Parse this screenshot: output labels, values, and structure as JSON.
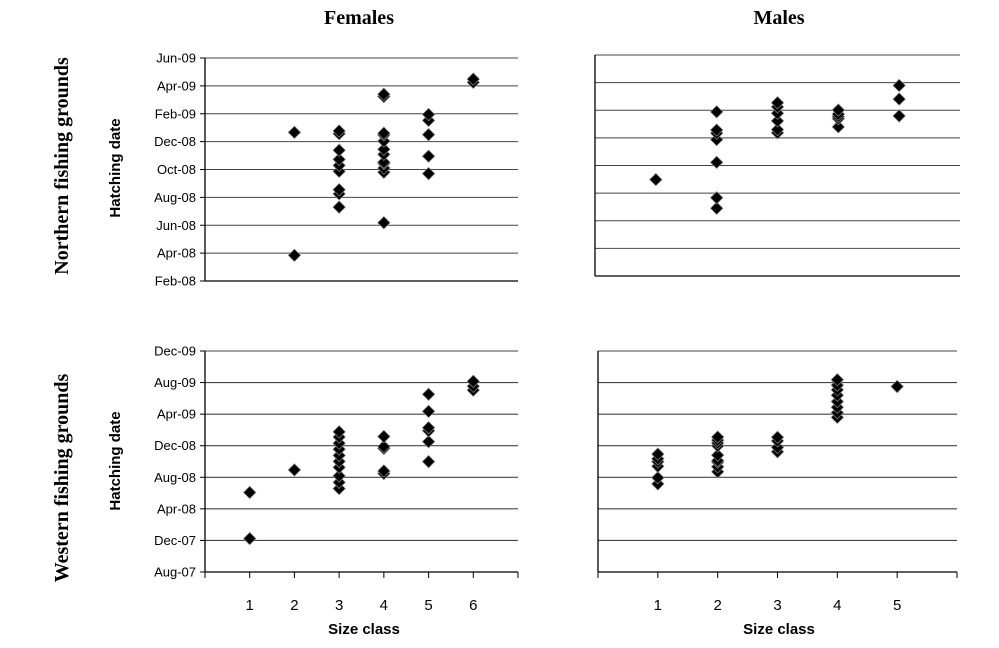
{
  "column_titles": [
    "Females",
    "Males"
  ],
  "row_labels": [
    "Northern fishing grounds",
    "Western fishing grounds"
  ],
  "ylabel": "Hatching date",
  "xlabel": "Size class",
  "colors": {
    "marker": "#000000",
    "marker_edge": "#888888",
    "gridline": "#444444",
    "axis": "#000000"
  },
  "chart_data": [
    {
      "type": "scatter",
      "title": "Females",
      "row": "Northern fishing grounds",
      "xlabel": "",
      "ylabel": "Hatching date",
      "x_ticks": [],
      "y_ticks": [
        "Feb-08",
        "Apr-08",
        "Jun-08",
        "Aug-08",
        "Oct-08",
        "Dec-08",
        "Feb-09",
        "Apr-09",
        "Jun-09"
      ],
      "ylim": [
        "2008-02-01",
        "2009-06-01"
      ],
      "xlim": [
        0,
        7
      ],
      "grid": true,
      "points": [
        {
          "x": 2,
          "y": "2008-03-28"
        },
        {
          "x": 2,
          "y": "2008-12-21"
        },
        {
          "x": 3,
          "y": "2008-07-11"
        },
        {
          "x": 3,
          "y": "2008-08-09"
        },
        {
          "x": 3,
          "y": "2008-08-18"
        },
        {
          "x": 3,
          "y": "2008-09-27"
        },
        {
          "x": 3,
          "y": "2008-10-10"
        },
        {
          "x": 3,
          "y": "2008-10-23"
        },
        {
          "x": 3,
          "y": "2008-11-12"
        },
        {
          "x": 3,
          "y": "2008-12-18"
        },
        {
          "x": 3,
          "y": "2008-12-24"
        },
        {
          "x": 4,
          "y": "2008-06-07"
        },
        {
          "x": 4,
          "y": "2008-09-25"
        },
        {
          "x": 4,
          "y": "2008-10-04"
        },
        {
          "x": 4,
          "y": "2008-10-14"
        },
        {
          "x": 4,
          "y": "2008-10-17"
        },
        {
          "x": 4,
          "y": "2008-11-03"
        },
        {
          "x": 4,
          "y": "2008-11-14"
        },
        {
          "x": 4,
          "y": "2008-12-02"
        },
        {
          "x": 4,
          "y": "2008-12-15"
        },
        {
          "x": 4,
          "y": "2008-12-19"
        },
        {
          "x": 4,
          "y": "2009-03-09"
        },
        {
          "x": 4,
          "y": "2009-03-14"
        },
        {
          "x": 5,
          "y": "2008-09-22"
        },
        {
          "x": 5,
          "y": "2008-10-30"
        },
        {
          "x": 5,
          "y": "2008-12-16"
        },
        {
          "x": 5,
          "y": "2009-01-16"
        },
        {
          "x": 5,
          "y": "2009-01-29"
        },
        {
          "x": 6,
          "y": "2009-04-09"
        },
        {
          "x": 6,
          "y": "2009-04-16"
        }
      ]
    },
    {
      "type": "scatter",
      "title": "Males",
      "row": "Northern fishing grounds",
      "xlabel": "",
      "ylabel": "",
      "x_ticks": [],
      "y_ticks": [],
      "ylim": [
        "2008-02-01",
        "2009-06-01"
      ],
      "xlim": [
        0,
        6
      ],
      "grid": true,
      "points": [
        {
          "x": 1,
          "y": "2008-08-31"
        },
        {
          "x": 2,
          "y": "2008-06-29"
        },
        {
          "x": 2,
          "y": "2008-07-22"
        },
        {
          "x": 2,
          "y": "2008-10-08"
        },
        {
          "x": 2,
          "y": "2008-11-27"
        },
        {
          "x": 2,
          "y": "2008-12-11"
        },
        {
          "x": 2,
          "y": "2008-12-18"
        },
        {
          "x": 2,
          "y": "2009-01-27"
        },
        {
          "x": 3,
          "y": "2008-12-12"
        },
        {
          "x": 3,
          "y": "2008-12-19"
        },
        {
          "x": 3,
          "y": "2009-01-07"
        },
        {
          "x": 3,
          "y": "2009-01-24"
        },
        {
          "x": 3,
          "y": "2009-02-07"
        },
        {
          "x": 3,
          "y": "2009-02-16"
        },
        {
          "x": 4,
          "y": "2008-12-25"
        },
        {
          "x": 4,
          "y": "2009-01-12"
        },
        {
          "x": 4,
          "y": "2009-01-17"
        },
        {
          "x": 4,
          "y": "2009-01-22"
        },
        {
          "x": 4,
          "y": "2009-01-31"
        },
        {
          "x": 5,
          "y": "2009-01-18"
        },
        {
          "x": 5,
          "y": "2009-02-24"
        },
        {
          "x": 5,
          "y": "2009-03-26"
        }
      ]
    },
    {
      "type": "scatter",
      "title": "",
      "row": "Western fishing grounds",
      "xlabel": "Size class",
      "ylabel": "Hatching date",
      "x_ticks": [
        "1",
        "2",
        "3",
        "4",
        "5",
        "6"
      ],
      "y_ticks": [
        "Aug-07",
        "Dec-07",
        "Apr-08",
        "Aug-08",
        "Dec-08",
        "Apr-09",
        "Aug-09",
        "Dec-09"
      ],
      "ylim": [
        "2007-08-01",
        "2009-12-01"
      ],
      "xlim": [
        0,
        7
      ],
      "grid": true,
      "points": [
        {
          "x": 1,
          "y": "2007-12-08"
        },
        {
          "x": 1,
          "y": "2008-06-03"
        },
        {
          "x": 2,
          "y": "2008-08-29"
        },
        {
          "x": 3,
          "y": "2008-06-18"
        },
        {
          "x": 3,
          "y": "2008-07-12"
        },
        {
          "x": 3,
          "y": "2008-08-06"
        },
        {
          "x": 3,
          "y": "2008-09-08"
        },
        {
          "x": 3,
          "y": "2008-10-01"
        },
        {
          "x": 3,
          "y": "2008-10-24"
        },
        {
          "x": 3,
          "y": "2008-11-17"
        },
        {
          "x": 3,
          "y": "2008-12-10"
        },
        {
          "x": 3,
          "y": "2009-01-03"
        },
        {
          "x": 3,
          "y": "2009-01-23"
        },
        {
          "x": 4,
          "y": "2008-08-15"
        },
        {
          "x": 4,
          "y": "2008-08-25"
        },
        {
          "x": 4,
          "y": "2008-11-20"
        },
        {
          "x": 4,
          "y": "2008-11-27"
        },
        {
          "x": 4,
          "y": "2009-01-05"
        },
        {
          "x": 5,
          "y": "2008-09-30"
        },
        {
          "x": 5,
          "y": "2008-12-16"
        },
        {
          "x": 5,
          "y": "2009-01-27"
        },
        {
          "x": 5,
          "y": "2009-02-08"
        },
        {
          "x": 5,
          "y": "2009-04-12"
        },
        {
          "x": 5,
          "y": "2009-06-17"
        },
        {
          "x": 6,
          "y": "2009-07-03"
        },
        {
          "x": 6,
          "y": "2009-07-18"
        },
        {
          "x": 6,
          "y": "2009-08-06"
        }
      ]
    },
    {
      "type": "scatter",
      "title": "",
      "row": "Western fishing grounds",
      "xlabel": "Size class",
      "ylabel": "",
      "x_ticks": [
        "1",
        "2",
        "3",
        "4",
        "5"
      ],
      "y_ticks": [],
      "ylim": [
        "2007-08-01",
        "2009-12-01"
      ],
      "xlim": [
        0,
        6
      ],
      "grid": true,
      "points": [
        {
          "x": 1,
          "y": "2008-07-06"
        },
        {
          "x": 1,
          "y": "2008-07-30"
        },
        {
          "x": 1,
          "y": "2008-09-12"
        },
        {
          "x": 1,
          "y": "2008-09-30"
        },
        {
          "x": 1,
          "y": "2008-10-11"
        },
        {
          "x": 1,
          "y": "2008-10-29"
        },
        {
          "x": 2,
          "y": "2008-08-22"
        },
        {
          "x": 2,
          "y": "2008-09-10"
        },
        {
          "x": 2,
          "y": "2008-09-28"
        },
        {
          "x": 2,
          "y": "2008-10-04"
        },
        {
          "x": 2,
          "y": "2008-10-25"
        },
        {
          "x": 2,
          "y": "2008-11-30"
        },
        {
          "x": 2,
          "y": "2008-12-11"
        },
        {
          "x": 2,
          "y": "2008-12-22"
        },
        {
          "x": 2,
          "y": "2009-01-03"
        },
        {
          "x": 3,
          "y": "2008-11-07"
        },
        {
          "x": 3,
          "y": "2008-11-24"
        },
        {
          "x": 3,
          "y": "2008-12-19"
        },
        {
          "x": 3,
          "y": "2009-01-02"
        },
        {
          "x": 4,
          "y": "2009-03-20"
        },
        {
          "x": 4,
          "y": "2009-04-07"
        },
        {
          "x": 4,
          "y": "2009-04-28"
        },
        {
          "x": 4,
          "y": "2009-05-20"
        },
        {
          "x": 4,
          "y": "2009-06-13"
        },
        {
          "x": 4,
          "y": "2009-07-04"
        },
        {
          "x": 4,
          "y": "2009-07-22"
        },
        {
          "x": 4,
          "y": "2009-08-12"
        },
        {
          "x": 5,
          "y": "2009-07-17"
        }
      ]
    }
  ]
}
